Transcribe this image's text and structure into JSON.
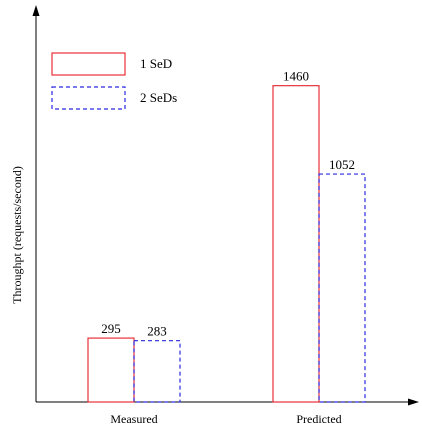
{
  "chart_data": {
    "type": "bar",
    "title": "",
    "xlabel": "",
    "ylabel": "Throughpt (requests/second)",
    "categories": [
      "Measured",
      "Predicted"
    ],
    "series": [
      {
        "name": "1 SeD",
        "values": [
          295,
          1460
        ],
        "color": "#e8303a",
        "line_style": "solid"
      },
      {
        "name": "2 SeDs",
        "values": [
          283,
          1052
        ],
        "color": "#2a2ae0",
        "line_style": "dashed"
      }
    ],
    "ylim": [
      0,
      1800
    ],
    "y_ticks": "none",
    "grid": false,
    "legend_position": "top-left",
    "data_labels": true
  }
}
